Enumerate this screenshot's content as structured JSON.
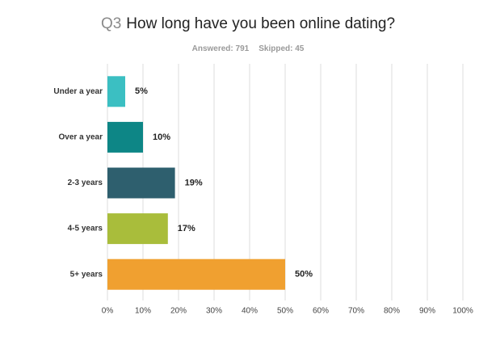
{
  "chart_data": {
    "type": "bar",
    "orientation": "horizontal",
    "question_number": "Q3",
    "title": "How long have you been online dating?",
    "answered": "Answered: 791",
    "skipped": "Skipped: 45",
    "categories": [
      "Under a year",
      "Over a year",
      "2-3 years",
      "4-5 years",
      "5+ years"
    ],
    "values": [
      5,
      10,
      19,
      17,
      50
    ],
    "value_labels": [
      "5%",
      "10%",
      "19%",
      "17%",
      "50%"
    ],
    "colors": [
      "#3bbfc2",
      "#0d8686",
      "#2e5f6e",
      "#a9bd3b",
      "#f0a030"
    ],
    "xlim": [
      0,
      100
    ],
    "xticks": [
      {
        "value": 0,
        "label": "0%"
      },
      {
        "value": 10,
        "label": "10%"
      },
      {
        "value": 20,
        "label": "20%"
      },
      {
        "value": 30,
        "label": "30%"
      },
      {
        "value": 40,
        "label": "40%"
      },
      {
        "value": 50,
        "label": "50%"
      },
      {
        "value": 60,
        "label": "60%"
      },
      {
        "value": 70,
        "label": "70%"
      },
      {
        "value": 80,
        "label": "80%"
      },
      {
        "value": 90,
        "label": "90%"
      },
      {
        "value": 100,
        "label": "100%"
      }
    ],
    "grid": true
  }
}
